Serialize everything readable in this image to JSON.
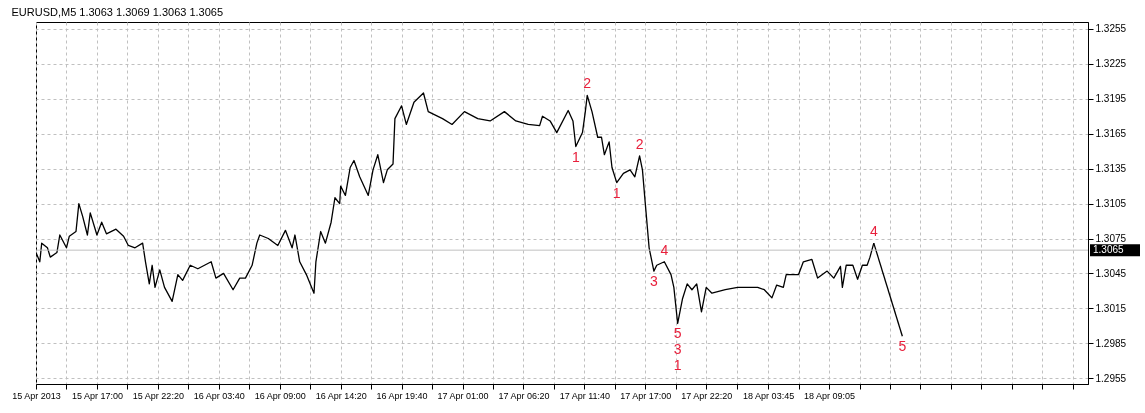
{
  "chart_data": {
    "type": "line",
    "title": "EURUSD,M5  1.3063 1.3069 1.3063 1.3065",
    "xlim": [
      "2013-04-15T11:40",
      "2013-04-19T07:45"
    ],
    "ylim": [
      1.295,
      1.3261
    ],
    "xticks": [
      {
        "value": "2013-04-15T11:40",
        "label": "15 Apr 2013"
      },
      {
        "value": "2013-04-15T14:20",
        "label": null
      },
      {
        "value": "2013-04-15T17:00",
        "label": "15 Apr 17:00"
      },
      {
        "value": "2013-04-15T19:40",
        "label": null
      },
      {
        "value": "2013-04-15T22:20",
        "label": "15 Apr 22:20"
      },
      {
        "value": "2013-04-16T01:00",
        "label": null
      },
      {
        "value": "2013-04-16T03:40",
        "label": "16 Apr 03:40"
      },
      {
        "value": "2013-04-16T06:20",
        "label": null
      },
      {
        "value": "2013-04-16T09:00",
        "label": "16 Apr 09:00"
      },
      {
        "value": "2013-04-16T11:40",
        "label": null
      },
      {
        "value": "2013-04-16T14:20",
        "label": "16 Apr 14:20"
      },
      {
        "value": "2013-04-16T17:00",
        "label": null
      },
      {
        "value": "2013-04-16T19:40",
        "label": "16 Apr 19:40"
      },
      {
        "value": "2013-04-16T22:20",
        "label": null
      },
      {
        "value": "2013-04-17T01:00",
        "label": "17 Apr 01:00"
      },
      {
        "value": "2013-04-17T03:40",
        "label": null
      },
      {
        "value": "2013-04-17T06:20",
        "label": "17 Apr 06:20"
      },
      {
        "value": "2013-04-17T09:00",
        "label": null
      },
      {
        "value": "2013-04-17T11:40",
        "label": "17 Apr 11:40"
      },
      {
        "value": "2013-04-17T14:20",
        "label": null
      },
      {
        "value": "2013-04-17T17:00",
        "label": "17 Apr 17:00"
      },
      {
        "value": "2013-04-17T19:40",
        "label": null
      },
      {
        "value": "2013-04-17T22:20",
        "label": "17 Apr 22:20"
      },
      {
        "value": "2013-04-18T01:00",
        "label": null
      },
      {
        "value": "2013-04-18T03:45",
        "label": "18 Apr 03:45"
      },
      {
        "value": "2013-04-18T06:25",
        "label": null
      },
      {
        "value": "2013-04-18T09:05",
        "label": "18 Apr 09:05"
      },
      {
        "value": "2013-04-18T11:45",
        "label": null
      },
      {
        "value": "2013-04-18T14:25",
        "label": null
      },
      {
        "value": "2013-04-18T17:05",
        "label": null
      },
      {
        "value": "2013-04-18T19:45",
        "label": null
      },
      {
        "value": "2013-04-18T22:25",
        "label": null
      },
      {
        "value": "2013-04-19T01:05",
        "label": null
      },
      {
        "value": "2013-04-19T03:45",
        "label": null
      },
      {
        "value": "2013-04-19T06:25",
        "label": null
      }
    ],
    "yticks": [
      1.2955,
      1.2985,
      1.3015,
      1.3045,
      1.3075,
      1.3105,
      1.3135,
      1.3165,
      1.3195,
      1.3225,
      1.3255
    ],
    "grid": true,
    "series": [
      {
        "color": "#000000",
        "x": [
          "2013-04-15T11:40",
          "2013-04-15T12:00",
          "2013-04-15T12:10",
          "2013-04-15T12:40",
          "2013-04-15T12:55",
          "2013-04-15T13:30",
          "2013-04-15T13:45",
          "2013-04-15T14:20",
          "2013-04-15T14:35",
          "2013-04-15T15:10",
          "2013-04-15T15:25",
          "2013-04-15T15:45",
          "2013-04-15T16:10",
          "2013-04-15T16:25",
          "2013-04-15T17:00",
          "2013-04-15T17:25",
          "2013-04-15T17:50",
          "2013-04-15T18:40",
          "2013-04-15T19:20",
          "2013-04-15T19:45",
          "2013-04-15T20:20",
          "2013-04-15T21:00",
          "2013-04-15T21:15",
          "2013-04-15T21:35",
          "2013-04-15T21:50",
          "2013-04-15T22:05",
          "2013-04-15T22:30",
          "2013-04-15T22:55",
          "2013-04-15T23:35",
          "2013-04-16T00:05",
          "2013-04-16T00:30",
          "2013-04-16T01:10",
          "2013-04-16T01:50",
          "2013-04-16T03:00",
          "2013-04-16T03:25",
          "2013-04-16T04:05",
          "2013-04-16T04:55",
          "2013-04-16T05:30",
          "2013-04-16T06:00",
          "2013-04-16T06:35",
          "2013-04-16T07:00",
          "2013-04-16T07:15",
          "2013-04-16T08:00",
          "2013-04-16T08:50",
          "2013-04-16T09:30",
          "2013-04-16T10:05",
          "2013-04-16T10:20",
          "2013-04-16T10:45",
          "2013-04-16T11:20",
          "2013-04-16T12:00",
          "2013-04-16T12:10",
          "2013-04-16T12:35",
          "2013-04-16T13:00",
          "2013-04-16T13:30",
          "2013-04-16T13:50",
          "2013-04-16T14:15",
          "2013-04-16T14:20",
          "2013-04-16T14:45",
          "2013-04-16T15:10",
          "2013-04-16T15:30",
          "2013-04-16T16:00",
          "2013-04-16T16:45",
          "2013-04-16T17:10",
          "2013-04-16T17:35",
          "2013-04-16T18:05",
          "2013-04-16T18:25",
          "2013-04-16T18:55",
          "2013-04-16T19:05",
          "2013-04-16T19:40",
          "2013-04-16T20:05",
          "2013-04-16T20:45",
          "2013-04-16T21:35",
          "2013-04-16T22:00",
          "2013-04-16T23:15",
          "2013-04-17T00:05",
          "2013-04-17T01:10",
          "2013-04-17T02:20",
          "2013-04-17T03:25",
          "2013-04-17T04:40",
          "2013-04-17T05:40",
          "2013-04-17T06:45",
          "2013-04-17T07:45",
          "2013-04-17T08:00",
          "2013-04-17T08:40",
          "2013-04-17T09:15",
          "2013-04-17T10:15",
          "2013-04-17T10:40",
          "2013-04-17T10:55",
          "2013-04-17T11:30",
          "2013-04-17T11:45",
          "2013-04-17T11:55",
          "2013-04-17T12:20",
          "2013-04-17T12:50",
          "2013-04-17T13:10",
          "2013-04-17T13:25",
          "2013-04-17T13:50",
          "2013-04-17T14:05",
          "2013-04-17T14:30",
          "2013-04-17T15:05",
          "2013-04-17T15:40",
          "2013-04-17T16:05",
          "2013-04-17T16:30",
          "2013-04-17T16:45",
          "2013-04-17T17:00",
          "2013-04-17T17:20",
          "2013-04-17T17:45",
          "2013-04-17T18:00",
          "2013-04-17T18:40",
          "2013-04-17T19:15",
          "2013-04-17T19:30",
          "2013-04-17T19:50",
          "2013-04-17T20:15",
          "2013-04-17T20:40",
          "2013-04-17T21:05",
          "2013-04-17T21:30",
          "2013-04-17T21:55",
          "2013-04-17T22:20",
          "2013-04-17T22:50",
          "2013-04-18T00:00",
          "2013-04-18T01:05",
          "2013-04-18T02:15",
          "2013-04-18T02:50",
          "2013-04-18T03:25",
          "2013-04-18T04:05",
          "2013-04-18T04:30",
          "2013-04-18T05:05",
          "2013-04-18T05:20",
          "2013-04-18T06:25",
          "2013-04-18T06:50",
          "2013-04-18T07:35",
          "2013-04-18T08:05",
          "2013-04-18T08:55",
          "2013-04-18T09:30",
          "2013-04-18T10:05",
          "2013-04-18T10:15",
          "2013-04-18T10:35",
          "2013-04-18T11:10",
          "2013-04-18T11:35",
          "2013-04-18T12:00",
          "2013-04-18T12:25",
          "2013-04-18T12:40",
          "2013-04-18T13:00"
        ],
        "values": [
          1.3063,
          1.3055,
          1.3071,
          1.3067,
          1.3059,
          1.3063,
          1.3078,
          1.3067,
          1.3077,
          1.3081,
          1.3105,
          1.3094,
          1.3078,
          1.3097,
          1.3078,
          1.3089,
          1.3079,
          1.3083,
          1.3077,
          1.3069,
          1.3067,
          1.3071,
          1.3055,
          1.3036,
          1.3052,
          1.3033,
          1.3048,
          1.3033,
          1.3021,
          1.3044,
          1.3039,
          1.3052,
          1.3049,
          1.3055,
          1.3041,
          1.3045,
          1.3031,
          1.3041,
          1.3041,
          1.3052,
          1.3071,
          1.3078,
          1.3075,
          1.3069,
          1.3082,
          1.3067,
          1.3078,
          1.3055,
          1.3044,
          1.3028,
          1.3055,
          1.3081,
          1.3071,
          1.3089,
          1.311,
          1.3105,
          1.312,
          1.3112,
          1.3136,
          1.3142,
          1.3128,
          1.3112,
          1.3134,
          1.3147,
          1.3123,
          1.3134,
          1.3139,
          1.3178,
          1.3189,
          1.3173,
          1.3192,
          1.32,
          1.3184,
          1.3178,
          1.3173,
          1.3184,
          1.3178,
          1.3176,
          1.3184,
          1.3176,
          1.3173,
          1.3172,
          1.318,
          1.3176,
          1.3166,
          1.3185,
          1.3176,
          1.3154,
          1.3166,
          1.3184,
          1.3198,
          1.3184,
          1.3162,
          1.3162,
          1.3147,
          1.3158,
          1.3136,
          1.3123,
          1.3131,
          1.3134,
          1.3128,
          1.3146,
          1.3134,
          1.3105,
          1.3067,
          1.3047,
          1.3052,
          1.3055,
          1.3044,
          1.3033,
          1.3002,
          1.3023,
          1.3036,
          1.3031,
          1.3036,
          1.3012,
          1.3033,
          1.3028,
          1.3031,
          1.3033,
          1.3033,
          1.3033,
          1.3031,
          1.3024,
          1.3035,
          1.3033,
          1.3044,
          1.3044,
          1.3055,
          1.3057,
          1.3041,
          1.3047,
          1.3041,
          1.3051,
          1.3033,
          1.3052,
          1.3052,
          1.304,
          1.3052,
          1.3052,
          1.3059,
          1.3071
        ]
      },
      {
        "color": "#000000",
        "x": [
          "2013-04-18T13:00",
          "2013-04-18T15:30"
        ],
        "values": [
          1.3071,
          1.2991
        ]
      }
    ],
    "ref_lines": [
      {
        "axis": "y",
        "value": 1.3065,
        "label": "1.3065",
        "color": "#c0c0c0"
      }
    ],
    "annotations": [
      {
        "text": "1",
        "x": "2013-04-17T10:55",
        "y": 1.3154
      },
      {
        "text": "2",
        "x": "2013-04-17T11:55",
        "y": 1.3198
      },
      {
        "text": "2",
        "x": "2013-04-17T16:30",
        "y": 1.3146
      },
      {
        "text": "1",
        "x": "2013-04-17T14:30",
        "y": 1.3123
      },
      {
        "text": "4",
        "x": "2013-04-17T18:40",
        "y": 1.3055
      },
      {
        "text": "3",
        "x": "2013-04-17T17:45",
        "y": 1.3047
      },
      {
        "text": "5",
        "x": "2013-04-17T19:50",
        "y": 1.3002
      },
      {
        "text": "3",
        "x": "2013-04-17T19:50",
        "y": 1.3002
      },
      {
        "text": "1",
        "x": "2013-04-17T19:50",
        "y": 1.3002
      },
      {
        "text": "4",
        "x": "2013-04-18T13:00",
        "y": 1.3071
      },
      {
        "text": "5",
        "x": "2013-04-18T15:30",
        "y": 1.2991
      }
    ]
  }
}
